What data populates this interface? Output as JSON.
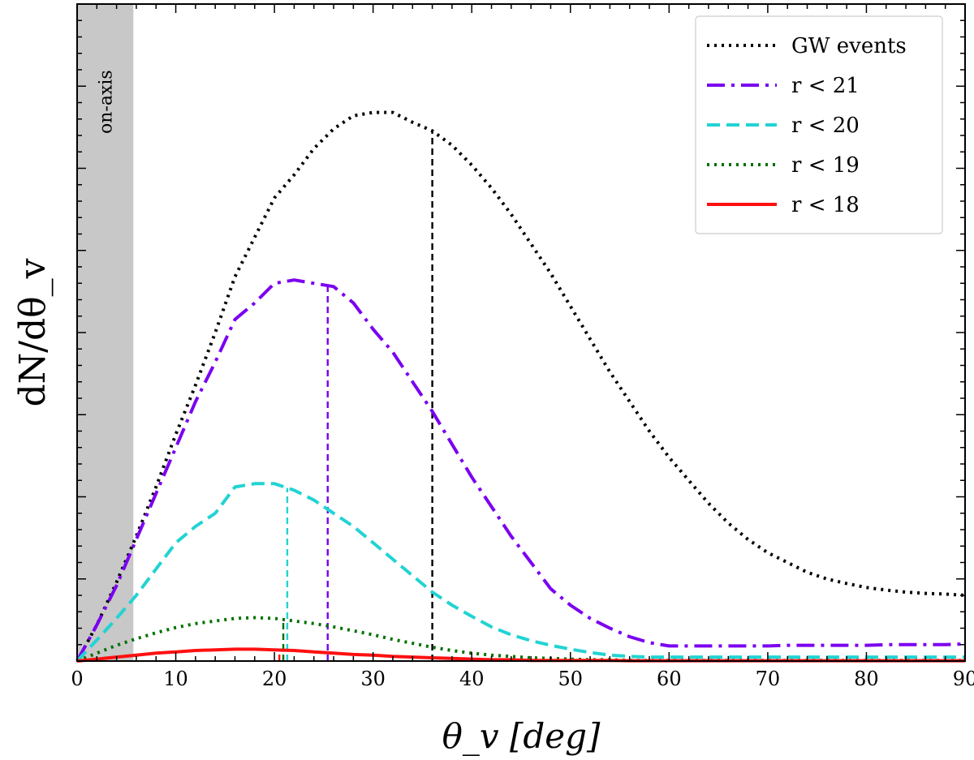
{
  "chart_data": {
    "type": "line",
    "xlabel": "θ_v [deg]",
    "ylabel": "dN/dθ_v",
    "xlim": [
      0,
      90
    ],
    "ylim": [
      0,
      1.0
    ],
    "x_ticks": [
      "0",
      "10",
      "20",
      "30",
      "40",
      "50",
      "60",
      "70",
      "80",
      "90"
    ],
    "y_tick_labels_shown": false,
    "grid": false,
    "legend_position": "top-right",
    "shaded_region": {
      "x_range": [
        0,
        5.7
      ],
      "label": "on-axis",
      "color": "#c8c8c8"
    },
    "series": [
      {
        "name": "GW events",
        "color": "#000000",
        "style": "dotted",
        "median": 36.0,
        "points": [
          [
            0,
            0
          ],
          [
            2,
            0.055
          ],
          [
            4,
            0.12
          ],
          [
            6,
            0.19
          ],
          [
            8,
            0.265
          ],
          [
            10,
            0.345
          ],
          [
            12,
            0.42
          ],
          [
            14,
            0.5
          ],
          [
            16,
            0.585
          ],
          [
            18,
            0.645
          ],
          [
            20,
            0.705
          ],
          [
            22,
            0.74
          ],
          [
            24,
            0.78
          ],
          [
            26,
            0.81
          ],
          [
            28,
            0.83
          ],
          [
            30,
            0.835
          ],
          [
            32,
            0.835
          ],
          [
            34,
            0.82
          ],
          [
            36,
            0.807
          ],
          [
            38,
            0.785
          ],
          [
            40,
            0.755
          ],
          [
            42,
            0.72
          ],
          [
            44,
            0.68
          ],
          [
            46,
            0.635
          ],
          [
            48,
            0.59
          ],
          [
            50,
            0.54
          ],
          [
            52,
            0.49
          ],
          [
            54,
            0.44
          ],
          [
            56,
            0.395
          ],
          [
            58,
            0.35
          ],
          [
            60,
            0.31
          ],
          [
            62,
            0.275
          ],
          [
            64,
            0.24
          ],
          [
            66,
            0.21
          ],
          [
            68,
            0.185
          ],
          [
            70,
            0.165
          ],
          [
            72,
            0.15
          ],
          [
            74,
            0.135
          ],
          [
            76,
            0.125
          ],
          [
            78,
            0.118
          ],
          [
            80,
            0.112
          ],
          [
            82,
            0.108
          ],
          [
            84,
            0.105
          ],
          [
            86,
            0.103
          ],
          [
            88,
            0.102
          ],
          [
            90,
            0.1
          ]
        ]
      },
      {
        "name": "r < 21",
        "color": "#7b00f0",
        "style": "dashdot",
        "median": 25.4,
        "points": [
          [
            0,
            0
          ],
          [
            2,
            0.055
          ],
          [
            4,
            0.115
          ],
          [
            6,
            0.185
          ],
          [
            8,
            0.255
          ],
          [
            10,
            0.325
          ],
          [
            12,
            0.395
          ],
          [
            14,
            0.455
          ],
          [
            16,
            0.52
          ],
          [
            18,
            0.545
          ],
          [
            20,
            0.575
          ],
          [
            22,
            0.58
          ],
          [
            24,
            0.575
          ],
          [
            26,
            0.57
          ],
          [
            28,
            0.545
          ],
          [
            30,
            0.505
          ],
          [
            32,
            0.47
          ],
          [
            34,
            0.425
          ],
          [
            36,
            0.38
          ],
          [
            38,
            0.33
          ],
          [
            40,
            0.28
          ],
          [
            42,
            0.235
          ],
          [
            44,
            0.19
          ],
          [
            46,
            0.15
          ],
          [
            48,
            0.11
          ],
          [
            50,
            0.085
          ],
          [
            52,
            0.065
          ],
          [
            54,
            0.05
          ],
          [
            56,
            0.037
          ],
          [
            58,
            0.028
          ],
          [
            60,
            0.023
          ],
          [
            62,
            0.023
          ],
          [
            64,
            0.023
          ],
          [
            66,
            0.023
          ],
          [
            68,
            0.023
          ],
          [
            70,
            0.023
          ],
          [
            72,
            0.024
          ],
          [
            74,
            0.024
          ],
          [
            76,
            0.024
          ],
          [
            78,
            0.024
          ],
          [
            80,
            0.024
          ],
          [
            82,
            0.025
          ],
          [
            84,
            0.025
          ],
          [
            86,
            0.025
          ],
          [
            88,
            0.025
          ],
          [
            90,
            0.026
          ]
        ]
      },
      {
        "name": "r < 20",
        "color": "#22d3d3",
        "style": "dashed",
        "median": 21.3,
        "points": [
          [
            0,
            0
          ],
          [
            2,
            0.032
          ],
          [
            4,
            0.065
          ],
          [
            6,
            0.1
          ],
          [
            8,
            0.14
          ],
          [
            10,
            0.18
          ],
          [
            12,
            0.205
          ],
          [
            14,
            0.225
          ],
          [
            16,
            0.265
          ],
          [
            18,
            0.27
          ],
          [
            20,
            0.27
          ],
          [
            22,
            0.26
          ],
          [
            24,
            0.245
          ],
          [
            26,
            0.225
          ],
          [
            28,
            0.205
          ],
          [
            30,
            0.18
          ],
          [
            32,
            0.155
          ],
          [
            34,
            0.13
          ],
          [
            36,
            0.105
          ],
          [
            38,
            0.085
          ],
          [
            40,
            0.068
          ],
          [
            42,
            0.052
          ],
          [
            44,
            0.04
          ],
          [
            46,
            0.031
          ],
          [
            48,
            0.024
          ],
          [
            50,
            0.018
          ],
          [
            52,
            0.013
          ],
          [
            54,
            0.009
          ],
          [
            56,
            0.007
          ],
          [
            58,
            0.006
          ],
          [
            60,
            0.006
          ],
          [
            62,
            0.006
          ],
          [
            64,
            0.006
          ],
          [
            66,
            0.006
          ],
          [
            68,
            0.006
          ],
          [
            70,
            0.006
          ],
          [
            72,
            0.006
          ],
          [
            74,
            0.006
          ],
          [
            76,
            0.006
          ],
          [
            78,
            0.006
          ],
          [
            80,
            0.006
          ],
          [
            82,
            0.006
          ],
          [
            84,
            0.006
          ],
          [
            86,
            0.006
          ],
          [
            88,
            0.006
          ],
          [
            90,
            0.006
          ]
        ]
      },
      {
        "name": "r < 19",
        "color": "#007000",
        "style": "dotted",
        "median": 20.9,
        "points": [
          [
            0,
            0
          ],
          [
            2,
            0.012
          ],
          [
            4,
            0.024
          ],
          [
            6,
            0.034
          ],
          [
            8,
            0.043
          ],
          [
            10,
            0.051
          ],
          [
            12,
            0.057
          ],
          [
            14,
            0.061
          ],
          [
            16,
            0.065
          ],
          [
            18,
            0.066
          ],
          [
            20,
            0.065
          ],
          [
            22,
            0.061
          ],
          [
            24,
            0.057
          ],
          [
            26,
            0.052
          ],
          [
            28,
            0.046
          ],
          [
            30,
            0.04
          ],
          [
            32,
            0.033
          ],
          [
            34,
            0.027
          ],
          [
            36,
            0.021
          ],
          [
            38,
            0.016
          ],
          [
            40,
            0.012
          ],
          [
            42,
            0.009
          ],
          [
            44,
            0.007
          ],
          [
            46,
            0.005
          ],
          [
            48,
            0.004
          ],
          [
            50,
            0.003
          ],
          [
            52,
            0.002
          ],
          [
            54,
            0.002
          ],
          [
            56,
            0.001
          ],
          [
            58,
            0.001
          ],
          [
            60,
            0.001
          ],
          [
            62,
            0.001
          ],
          [
            64,
            0.001
          ],
          [
            66,
            0.001
          ],
          [
            68,
            0.001
          ],
          [
            70,
            0.001
          ],
          [
            72,
            0.001
          ],
          [
            74,
            0.001
          ],
          [
            76,
            0.001
          ],
          [
            78,
            0.001
          ],
          [
            80,
            0.001
          ],
          [
            82,
            0.001
          ],
          [
            84,
            0.001
          ],
          [
            86,
            0.001
          ],
          [
            88,
            0.001
          ],
          [
            90,
            0.001
          ]
        ]
      },
      {
        "name": "r < 18",
        "color": "#ff1010",
        "style": "solid",
        "median": 20.5,
        "points": [
          [
            0,
            0
          ],
          [
            2,
            0.003
          ],
          [
            4,
            0.006
          ],
          [
            6,
            0.009
          ],
          [
            8,
            0.012
          ],
          [
            10,
            0.014
          ],
          [
            12,
            0.016
          ],
          [
            14,
            0.017
          ],
          [
            16,
            0.018
          ],
          [
            18,
            0.018
          ],
          [
            20,
            0.017
          ],
          [
            22,
            0.016
          ],
          [
            24,
            0.014
          ],
          [
            26,
            0.012
          ],
          [
            28,
            0.01
          ],
          [
            30,
            0.009
          ],
          [
            32,
            0.007
          ],
          [
            34,
            0.006
          ],
          [
            36,
            0.005
          ],
          [
            38,
            0.004
          ],
          [
            40,
            0.003
          ],
          [
            42,
            0.002
          ],
          [
            44,
            0.002
          ],
          [
            46,
            0.001
          ],
          [
            48,
            0.001
          ],
          [
            50,
            0.001
          ],
          [
            52,
            0.001
          ],
          [
            54,
            0.001
          ],
          [
            56,
            0.0005
          ],
          [
            58,
            0.0005
          ],
          [
            60,
            0.0005
          ],
          [
            62,
            0.0005
          ],
          [
            64,
            0.0005
          ],
          [
            66,
            0.0005
          ],
          [
            68,
            0.0005
          ],
          [
            70,
            0.0005
          ],
          [
            72,
            0.0005
          ],
          [
            74,
            0.0005
          ],
          [
            76,
            0.0005
          ],
          [
            78,
            0.0005
          ],
          [
            80,
            0.0005
          ],
          [
            82,
            0.0005
          ],
          [
            84,
            0.0005
          ],
          [
            86,
            0.0005
          ],
          [
            88,
            0.0005
          ],
          [
            90,
            0.0005
          ]
        ]
      }
    ]
  }
}
